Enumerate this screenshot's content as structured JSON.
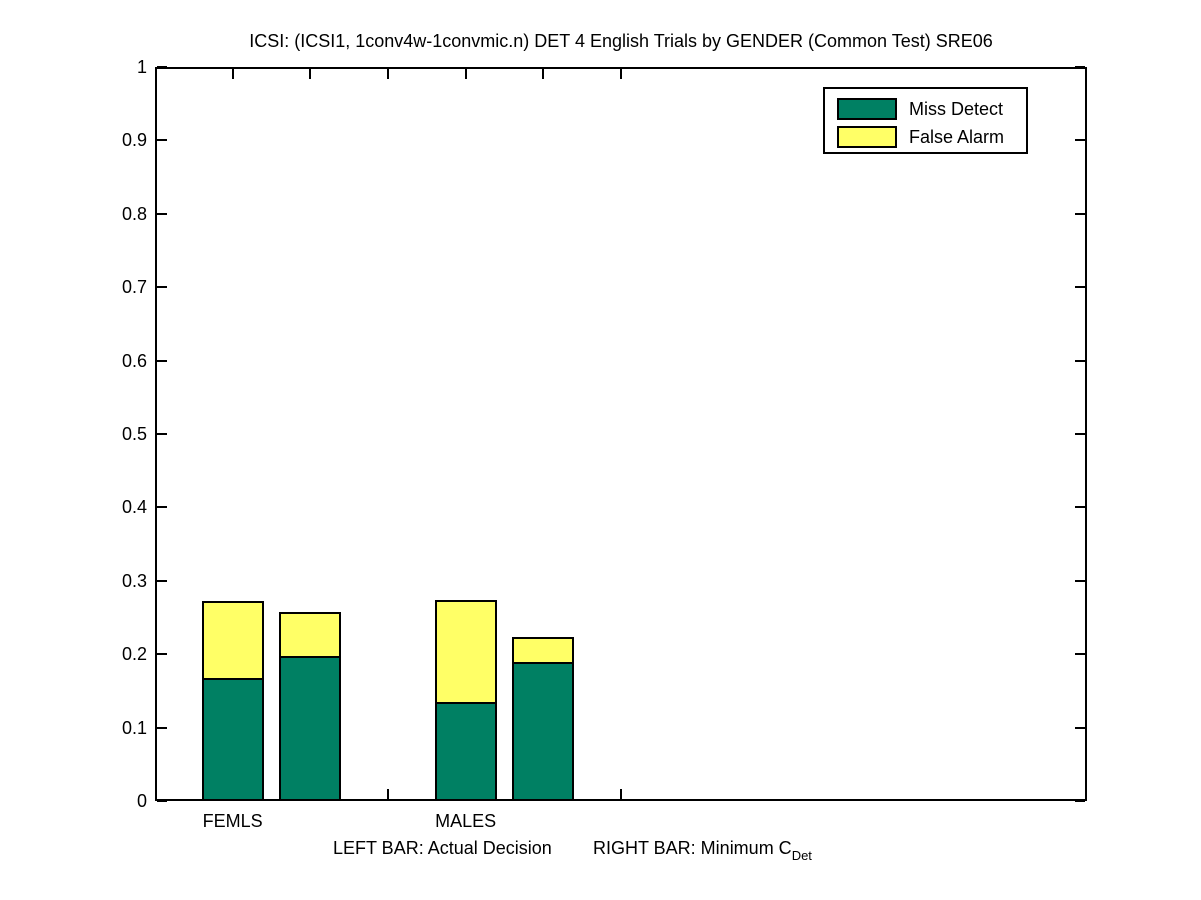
{
  "figure": {
    "title": "ICSI: (ICSI1, 1conv4w-1convmic.n) DET 4 English Trials by GENDER (Common Test) SRE06"
  },
  "legend": {
    "items": [
      {
        "label": "Miss Detect",
        "color_key": "miss_detect"
      },
      {
        "label": "False Alarm",
        "color_key": "false_alarm"
      }
    ]
  },
  "footnote": {
    "left_bar": "LEFT BAR: Actual Decision",
    "right_bar_prefix": "RIGHT BAR: Minimum C",
    "right_bar_subscript": "Det"
  },
  "colors": {
    "miss_detect": "#008063",
    "false_alarm": "#FFFF66",
    "axis": "#000000",
    "background": "#FFFFFF"
  },
  "chart_data": {
    "type": "bar",
    "stacked": true,
    "title": "ICSI: (ICSI1, 1conv4w-1convmic.n) DET 4 English Trials by GENDER (Common Test) SRE06",
    "xlabel": "",
    "ylabel": "",
    "xlim": [
      0,
      12
    ],
    "ylim": [
      0,
      1
    ],
    "grid": false,
    "legend_entries": [
      "Miss Detect",
      "False Alarm"
    ],
    "legend_position": "upper right",
    "bar_width": 0.8,
    "yticks": [
      {
        "v": 0.0,
        "label": "0"
      },
      {
        "v": 0.1,
        "label": "0.1"
      },
      {
        "v": 0.2,
        "label": "0.2"
      },
      {
        "v": 0.3,
        "label": "0.3"
      },
      {
        "v": 0.4,
        "label": "0.4"
      },
      {
        "v": 0.5,
        "label": "0.5"
      },
      {
        "v": 0.6,
        "label": "0.6"
      },
      {
        "v": 0.7,
        "label": "0.7"
      },
      {
        "v": 0.8,
        "label": "0.8"
      },
      {
        "v": 0.9,
        "label": "0.9"
      },
      {
        "v": 1.0,
        "label": "1"
      }
    ],
    "xticks": [
      1,
      2,
      3,
      4,
      5,
      6
    ],
    "group_labels": [
      {
        "x": 1,
        "label": "FEMLS"
      },
      {
        "x": 4,
        "label": "MALES"
      }
    ],
    "bar_meaning": {
      "left_bar": "Actual Decision",
      "right_bar": "Minimum CDet"
    },
    "bars": [
      {
        "x": 1,
        "group": "FEMLS",
        "kind": "Actual Decision",
        "miss_detect": 0.168,
        "false_alarm": 0.104,
        "total": 0.272
      },
      {
        "x": 2,
        "group": "FEMLS",
        "kind": "Minimum CDet",
        "miss_detect": 0.198,
        "false_alarm": 0.06,
        "total": 0.258
      },
      {
        "x": 4,
        "group": "MALES",
        "kind": "Actual Decision",
        "miss_detect": 0.135,
        "false_alarm": 0.139,
        "total": 0.274
      },
      {
        "x": 5,
        "group": "MALES",
        "kind": "Minimum CDet",
        "miss_detect": 0.19,
        "false_alarm": 0.034,
        "total": 0.224
      }
    ]
  }
}
